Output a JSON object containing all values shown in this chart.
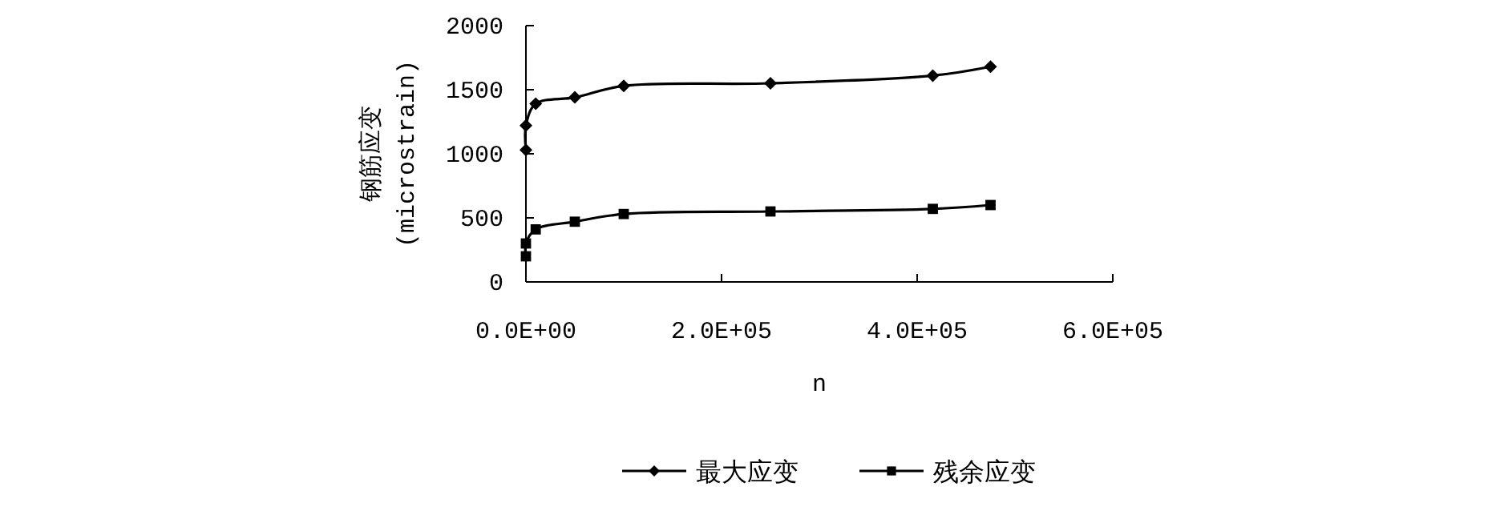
{
  "chart_data": {
    "type": "line",
    "xlabel": "n",
    "ylabel": "钢筋应变\n(microstrain)",
    "xlim": [
      0,
      600000
    ],
    "xticks": [
      {
        "value": 0,
        "label": "0.0E+00"
      },
      {
        "value": 200000,
        "label": "2.0E+05"
      },
      {
        "value": 400000,
        "label": "4.0E+05"
      },
      {
        "value": 600000,
        "label": "6.0E+05"
      }
    ],
    "ylim": [
      0,
      2000
    ],
    "yticks": [
      0,
      500,
      1000,
      1500,
      2000
    ],
    "grid": false,
    "legend": "bottom",
    "line_style": "solid",
    "series": [
      {
        "name": "最大应变",
        "color": "#000000",
        "marker": "diamond",
        "x": [
          0,
          0,
          10000,
          50000,
          100000,
          250000,
          416000,
          475000
        ],
        "values": [
          1030,
          1220,
          1390,
          1440,
          1530,
          1550,
          1610,
          1680
        ]
      },
      {
        "name": "残余应变",
        "color": "#000000",
        "marker": "square",
        "x": [
          0,
          0,
          10000,
          50000,
          100000,
          250000,
          416000,
          475000
        ],
        "values": [
          200,
          300,
          410,
          470,
          530,
          550,
          570,
          600
        ]
      }
    ]
  }
}
